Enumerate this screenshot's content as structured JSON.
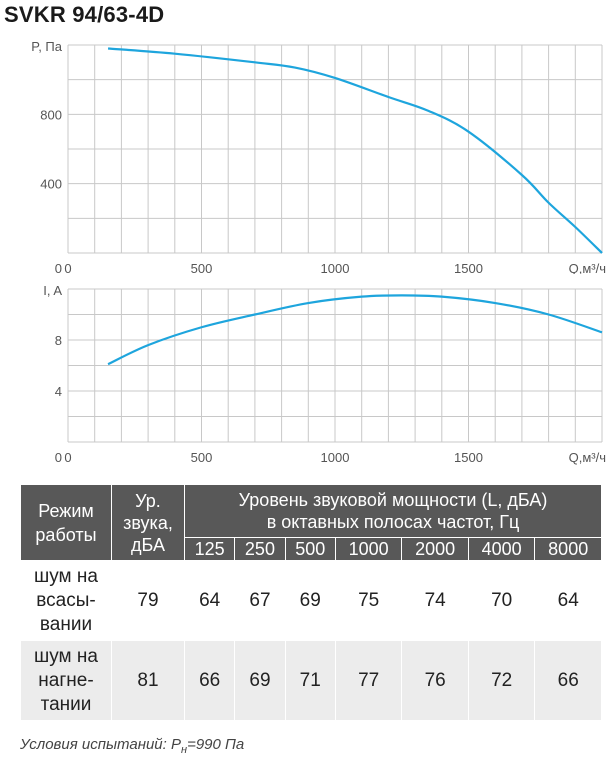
{
  "title": "SVKR 94/63-4D",
  "chart_data": [
    {
      "type": "line",
      "ylabel": "P, Па",
      "xlabel": "Q,м³/ч",
      "x_ticks": [
        0,
        500,
        1000,
        1500
      ],
      "y_ticks": [
        400,
        800
      ],
      "y_zero_label": "0",
      "xlim": [
        0,
        2000
      ],
      "ylim": [
        0,
        1200
      ],
      "grid": true,
      "color": "#1ea5dd",
      "x": [
        150,
        400,
        700,
        850,
        1000,
        1200,
        1350,
        1500,
        1700,
        1800,
        1900,
        2000
      ],
      "y": [
        1180,
        1150,
        1100,
        1070,
        1010,
        900,
        820,
        700,
        450,
        290,
        150,
        0
      ]
    },
    {
      "type": "line",
      "ylabel": "I, A",
      "xlabel": "Q,м³/ч",
      "x_ticks": [
        0,
        500,
        1000,
        1500
      ],
      "y_ticks": [
        4,
        8
      ],
      "y_zero_label": "0",
      "xlim": [
        0,
        2000
      ],
      "ylim": [
        0,
        12
      ],
      "grid": true,
      "color": "#1ea5dd",
      "x": [
        150,
        300,
        500,
        700,
        900,
        1100,
        1250,
        1400,
        1600,
        1800,
        2000
      ],
      "y": [
        6.1,
        7.6,
        9.0,
        10.0,
        10.9,
        11.4,
        11.5,
        11.4,
        10.9,
        10.0,
        8.6
      ]
    }
  ],
  "table": {
    "mode_header": "Режим работы",
    "level_header": "Ур. звука, дБА",
    "band_header_line1": "Уровень звуковой мощности (L, дБА)",
    "band_header_line2": "в октавных полосах частот, Гц",
    "bands": [
      "125",
      "250",
      "500",
      "1000",
      "2000",
      "4000",
      "8000"
    ],
    "rows": [
      {
        "mode_lines": [
          "шум на",
          "всасы-",
          "вании"
        ],
        "level": "79",
        "values": [
          "64",
          "67",
          "69",
          "75",
          "74",
          "70",
          "64"
        ]
      },
      {
        "mode_lines": [
          "шум на",
          "нагне-",
          "тании"
        ],
        "level": "81",
        "values": [
          "66",
          "69",
          "71",
          "77",
          "76",
          "72",
          "66"
        ]
      }
    ]
  },
  "footer": {
    "text": "Условия испытаний: P",
    "sub": "н",
    "tail": "=990 Па"
  }
}
